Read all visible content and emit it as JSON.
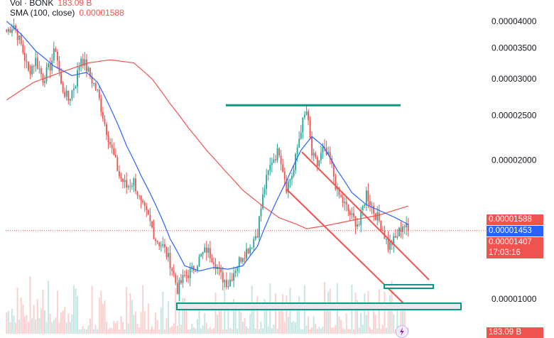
{
  "legend": {
    "vol_label": "Vol · BONK",
    "vol_value": "183.09 B",
    "sma_label": "SMA (100, close)",
    "sma_value": "0.00001588"
  },
  "price_tags": {
    "sma": "0.00001588",
    "blue": "0.00001453",
    "last": "0.00001407",
    "countdown": "17:03:16",
    "volume_tag": "183.09 B"
  },
  "colors": {
    "up": "#26a69a",
    "down": "#ef5350",
    "sma100": "#ef5350",
    "ma_blue": "#2962ff",
    "trend": "#ef5350",
    "resistance": "#089981",
    "support_fill": "#e7e9ee",
    "support_stroke": "#089981"
  },
  "chart_data": {
    "type": "candlestick",
    "y_ticks": [
      "0.00004000",
      "0.00003500",
      "0.00003000",
      "0.00002500",
      "0.00002000",
      "0.00001000"
    ],
    "ylim": [
      9e-06,
      4.23e-05
    ],
    "scale": "log",
    "bar_count": 222,
    "anchors": [
      [
        0,
        3.8e-05
      ],
      [
        4,
        3.93e-05
      ],
      [
        8,
        3.55e-05
      ],
      [
        12,
        3.1e-05
      ],
      [
        16,
        3.3e-05
      ],
      [
        20,
        3e-05
      ],
      [
        24,
        3.2e-05
      ],
      [
        27,
        3.5e-05
      ],
      [
        30,
        2.9e-05
      ],
      [
        34,
        2.7e-05
      ],
      [
        38,
        2.95e-05
      ],
      [
        41,
        3.35e-05
      ],
      [
        45,
        3.1e-05
      ],
      [
        50,
        2.8e-05
      ],
      [
        54,
        2.4e-05
      ],
      [
        58,
        2.1e-05
      ],
      [
        62,
        1.85e-05
      ],
      [
        66,
        1.75e-05
      ],
      [
        70,
        1.8e-05
      ],
      [
        74,
        1.6e-05
      ],
      [
        78,
        1.5e-05
      ],
      [
        82,
        1.35e-05
      ],
      [
        86,
        1.3e-05
      ],
      [
        90,
        1.2e-05
      ],
      [
        94,
        1.05e-05
      ],
      [
        98,
        1.12e-05
      ],
      [
        102,
        1.15e-05
      ],
      [
        106,
        1.22e-05
      ],
      [
        110,
        1.28e-05
      ],
      [
        114,
        1.22e-05
      ],
      [
        118,
        1.12e-05
      ],
      [
        122,
        1.08e-05
      ],
      [
        126,
        1.17e-05
      ],
      [
        130,
        1.25e-05
      ],
      [
        134,
        1.3e-05
      ],
      [
        138,
        1.4e-05
      ],
      [
        142,
        1.75e-05
      ],
      [
        146,
        2e-05
      ],
      [
        150,
        2.1e-05
      ],
      [
        154,
        1.75e-05
      ],
      [
        158,
        1.9e-05
      ],
      [
        162,
        2.35e-05
      ],
      [
        165,
        2.55e-05
      ],
      [
        168,
        2.05e-05
      ],
      [
        171,
        1.95e-05
      ],
      [
        174,
        2.1e-05
      ],
      [
        178,
        2e-05
      ],
      [
        182,
        1.7e-05
      ],
      [
        186,
        1.6e-05
      ],
      [
        190,
        1.5e-05
      ],
      [
        194,
        1.45e-05
      ],
      [
        198,
        1.7e-05
      ],
      [
        202,
        1.55e-05
      ],
      [
        206,
        1.45e-05
      ],
      [
        210,
        1.3e-05
      ],
      [
        214,
        1.35e-05
      ],
      [
        218,
        1.45e-05
      ],
      [
        221,
        1.41e-05
      ]
    ],
    "sma100": [
      [
        0,
        2.7e-05
      ],
      [
        15,
        2.95e-05
      ],
      [
        30,
        3.1e-05
      ],
      [
        45,
        3.25e-05
      ],
      [
        57,
        3.3e-05
      ],
      [
        70,
        3.25e-05
      ],
      [
        80,
        3e-05
      ],
      [
        90,
        2.65e-05
      ],
      [
        100,
        2.35e-05
      ],
      [
        110,
        2.1e-05
      ],
      [
        120,
        1.9e-05
      ],
      [
        130,
        1.72e-05
      ],
      [
        140,
        1.6e-05
      ],
      [
        150,
        1.5e-05
      ],
      [
        160,
        1.45e-05
      ],
      [
        165,
        1.42e-05
      ],
      [
        175,
        1.44e-05
      ],
      [
        190,
        1.48e-05
      ],
      [
        205,
        1.52e-05
      ],
      [
        221,
        1.59e-05
      ]
    ],
    "ma_blue": [
      [
        0,
        4e-05
      ],
      [
        8,
        3.75e-05
      ],
      [
        16,
        3.45e-05
      ],
      [
        26,
        3.2e-05
      ],
      [
        36,
        3.05e-05
      ],
      [
        44,
        3.1e-05
      ],
      [
        50,
        2.95e-05
      ],
      [
        58,
        2.55e-05
      ],
      [
        66,
        2.15e-05
      ],
      [
        74,
        1.85e-05
      ],
      [
        82,
        1.6e-05
      ],
      [
        90,
        1.35e-05
      ],
      [
        98,
        1.18e-05
      ],
      [
        106,
        1.15e-05
      ],
      [
        114,
        1.17e-05
      ],
      [
        122,
        1.16e-05
      ],
      [
        130,
        1.18e-05
      ],
      [
        138,
        1.3e-05
      ],
      [
        146,
        1.55e-05
      ],
      [
        154,
        1.8e-05
      ],
      [
        162,
        2.1e-05
      ],
      [
        168,
        2.25e-05
      ],
      [
        174,
        2.15e-05
      ],
      [
        182,
        1.9e-05
      ],
      [
        190,
        1.7e-05
      ],
      [
        198,
        1.6e-05
      ],
      [
        206,
        1.55e-05
      ],
      [
        214,
        1.5e-05
      ],
      [
        221,
        1.45e-05
      ]
    ],
    "levels": {
      "resistance": 2.63e-05,
      "last_price": 1.407e-05
    }
  }
}
